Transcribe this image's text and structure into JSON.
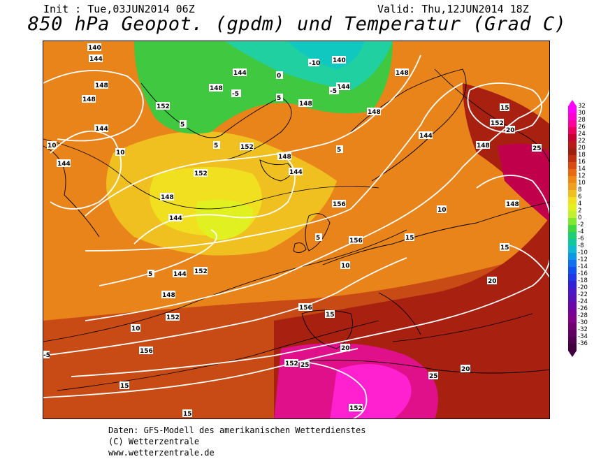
{
  "header": {
    "init_label": "Init : Tue,03JUN2014 06Z",
    "valid_label": "Valid: Thu,12JUN2014 18Z",
    "title": "850 hPa Geopot. (gpdm) und Temperatur (Grad C)"
  },
  "footer": {
    "line1": "Daten: GFS-Modell des amerikanischen Wetterdienstes",
    "line2": "(C) Wetterzentrale",
    "line3": "www.wetterzentrale.de"
  },
  "legend": {
    "values": [
      "32",
      "30",
      "28",
      "26",
      "24",
      "22",
      "20",
      "18",
      "16",
      "14",
      "12",
      "10",
      "8",
      "6",
      "4",
      "2",
      "0",
      "-2",
      "-4",
      "-6",
      "-8",
      "-10",
      "-12",
      "-14",
      "-16",
      "-18",
      "-20",
      "-22",
      "-24",
      "-26",
      "-28",
      "-30",
      "-32",
      "-34",
      "-36"
    ],
    "colors": [
      "#ff00ff",
      "#ff00d0",
      "#ff009a",
      "#e8005a",
      "#c80030",
      "#b81a1a",
      "#a02010",
      "#c03010",
      "#d84a10",
      "#e86a10",
      "#f08818",
      "#f0a020",
      "#f0c020",
      "#f0e020",
      "#e0f020",
      "#c0f030",
      "#80e830",
      "#40d840",
      "#20d070",
      "#10c8a0",
      "#10b8d0",
      "#1098e8",
      "#1070f0",
      "#1050f0",
      "#2038e8",
      "#3020d8",
      "#4818c8",
      "#5810b8",
      "#6808a8",
      "#780098",
      "#800088",
      "#700070",
      "#600060",
      "#500050",
      "#400040"
    ]
  },
  "map": {
    "geopotential_labels": [
      "140",
      "144",
      "148",
      "152",
      "144",
      "148",
      "152",
      "144",
      "148",
      "144",
      "148",
      "152",
      "144",
      "140",
      "144",
      "148",
      "144",
      "148",
      "152",
      "156",
      "148",
      "144",
      "148",
      "156",
      "148",
      "152",
      "156",
      "152",
      "156",
      "152",
      "144",
      "148",
      "152",
      "148"
    ],
    "temperature_labels": [
      "-10",
      "0",
      "-5",
      "5",
      "-5",
      "5",
      "10",
      "10",
      "5",
      "5",
      "5",
      "10",
      "15",
      "20",
      "25",
      "10",
      "15",
      "20",
      "15",
      "5",
      "15",
      "20",
      "25",
      "20",
      "25",
      "15",
      "10",
      "15",
      "-5"
    ]
  }
}
